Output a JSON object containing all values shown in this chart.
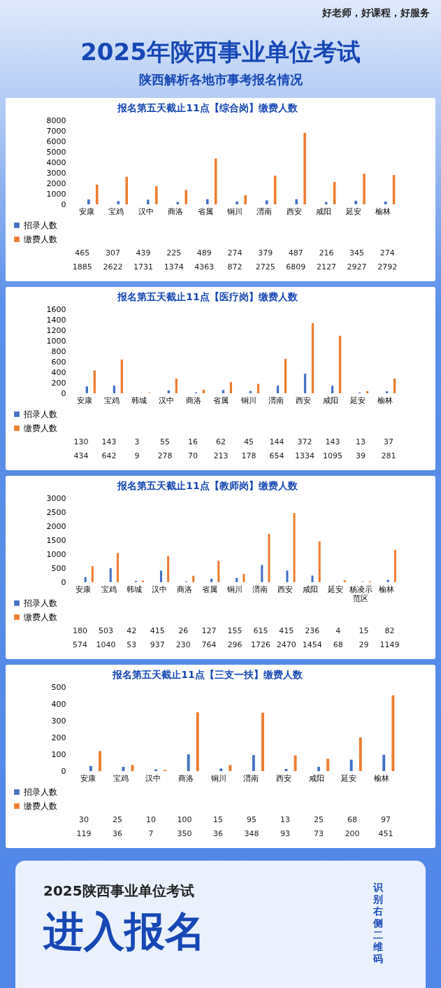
{
  "chart_data": [
    {
      "type": "other",
      "title": "2025年陕西事业单位考试",
      "subtitle": "陕西解析各地市事考报名情况",
      "annotations": [
        "好老师，好课程，好服务"
      ]
    },
    {
      "type": "bar",
      "title": "报名第五天截止11点【综合岗】缴费人数",
      "categories": [
        "安康",
        "宝鸡",
        "汉中",
        "商洛",
        "省属",
        "铜川",
        "渭南",
        "西安",
        "咸阳",
        "延安",
        "榆林"
      ],
      "series": [
        {
          "name": "招录人数",
          "color": "#4472c4",
          "values": [
            465,
            307,
            439,
            225,
            489,
            274,
            379,
            487,
            216,
            345,
            274
          ]
        },
        {
          "name": "缴费人数",
          "color": "#ed7d31",
          "values": [
            1885,
            2622,
            1731,
            1374,
            4363,
            872,
            2725,
            6809,
            2127,
            2927,
            2792
          ]
        }
      ],
      "ylim": [
        0,
        8000
      ],
      "yticks": [
        0,
        1000,
        2000,
        3000,
        4000,
        5000,
        6000,
        7000,
        8000
      ],
      "grid": false,
      "legend": "bottom left",
      "data_labels": true
    },
    {
      "type": "bar",
      "title": "报名第五天截止11点【医疗岗】缴费人数",
      "categories": [
        "安康",
        "宝鸡",
        "韩城",
        "汉中",
        "商洛",
        "省属",
        "铜川",
        "渭南",
        "西安",
        "咸阳",
        "延安",
        "榆林"
      ],
      "series": [
        {
          "name": "招录人数",
          "color": "#4472c4",
          "values": [
            130,
            143,
            3,
            55,
            16,
            62,
            45,
            144,
            372,
            143,
            13,
            37
          ]
        },
        {
          "name": "缴费人数",
          "color": "#ed7d31",
          "values": [
            434,
            642,
            9,
            278,
            70,
            213,
            178,
            654,
            1334,
            1095,
            39,
            281
          ]
        }
      ],
      "ylim": [
        0,
        1600
      ],
      "yticks": [
        0,
        200,
        400,
        600,
        800,
        1000,
        1200,
        1400,
        1600
      ],
      "grid": false,
      "legend": "bottom left",
      "data_labels": true
    },
    {
      "type": "bar",
      "title": "报名第五天截止11点【教师岗】缴费人数",
      "categories": [
        "安康",
        "宝鸡",
        "韩城",
        "汉中",
        "商洛",
        "省属",
        "铜川",
        "渭南",
        "西安",
        "咸阳",
        "延安",
        "杨凌示范区",
        "榆林"
      ],
      "series": [
        {
          "name": "招录人数",
          "color": "#4472c4",
          "values": [
            180,
            503,
            42,
            415,
            26,
            127,
            155,
            615,
            415,
            236,
            4,
            15,
            82
          ]
        },
        {
          "name": "缴费人数",
          "color": "#ed7d31",
          "values": [
            574,
            1040,
            53,
            937,
            230,
            764,
            296,
            1726,
            2470,
            1454,
            68,
            29,
            1149
          ]
        }
      ],
      "ylim": [
        0,
        3000
      ],
      "yticks": [
        0,
        500,
        1000,
        1500,
        2000,
        2500,
        3000
      ],
      "grid": false,
      "legend": "bottom left",
      "data_labels": true
    },
    {
      "type": "bar",
      "title": "报名第五天截止11点【三支一扶】缴费人数",
      "categories": [
        "安康",
        "宝鸡",
        "汉中",
        "商洛",
        "铜川",
        "渭南",
        "西安",
        "咸阳",
        "延安",
        "榆林"
      ],
      "series": [
        {
          "name": "招录人数",
          "color": "#4472c4",
          "values": [
            30,
            25,
            10,
            100,
            15,
            95,
            13,
            25,
            68,
            97
          ]
        },
        {
          "name": "缴费人数",
          "color": "#ed7d31",
          "values": [
            119,
            36,
            7,
            350,
            36,
            348,
            93,
            73,
            200,
            451
          ]
        }
      ],
      "ylim": [
        0,
        500
      ],
      "yticks": [
        0,
        100,
        200,
        300,
        400,
        500
      ],
      "grid": false,
      "legend": "bottom left",
      "data_labels": true
    },
    {
      "type": "other",
      "annotations": [
        "2025陕西事业单位考试",
        "进入报名",
        "识别右侧二维码"
      ]
    }
  ]
}
